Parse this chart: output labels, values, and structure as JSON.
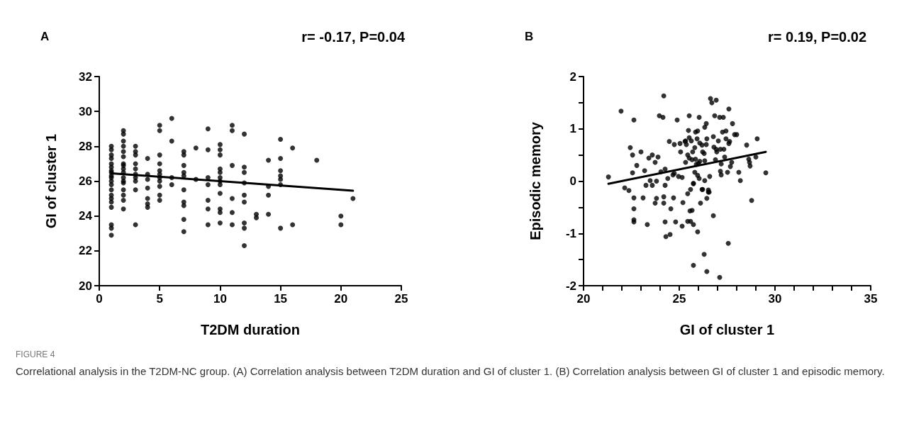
{
  "chart_data": [
    {
      "type": "scatter",
      "title": "A",
      "xlabel": "T2DM duration",
      "ylabel": "GI of cluster 1",
      "annotations": [
        "r= -0.17, P=0.04",
        "FIGURE 4",
        "Correlational analysis in the T2DM-NC group. (A) Correlation analysis between T2DM duration and GI of cluster 1. (B) Correlation analysis between GI of cluster 1 and episodic memory."
      ],
      "marker": "circle",
      "xlim": [
        0,
        25
      ],
      "xticks": [
        0,
        5,
        10,
        15,
        20,
        25
      ],
      "ylim": [
        20,
        32
      ],
      "yticks": [
        20,
        22,
        24,
        26,
        28,
        30,
        32
      ],
      "series": [
        {
          "color": "#000000",
          "x": [
            1,
            1,
            1,
            1,
            1,
            1,
            1,
            1,
            1,
            1,
            1,
            1,
            1,
            1,
            1,
            1,
            1,
            1,
            1,
            1,
            2,
            2,
            2,
            2,
            2,
            2,
            2,
            2,
            2,
            2,
            2,
            2,
            2,
            2,
            2,
            2,
            2,
            3,
            3,
            3,
            3,
            3,
            3,
            3,
            3,
            3,
            3,
            4,
            4,
            4,
            4,
            4,
            4,
            4,
            5,
            5,
            5,
            5,
            5,
            5,
            5,
            5,
            5,
            5,
            5,
            6,
            6,
            6,
            6,
            7,
            7,
            7,
            7,
            7,
            7,
            7,
            7,
            7,
            7,
            8,
            8,
            9,
            9,
            9,
            9,
            9,
            9,
            9,
            10,
            10,
            10,
            10,
            10,
            10,
            10,
            10,
            10,
            10,
            10,
            10,
            11,
            11,
            11,
            11,
            11,
            11,
            12,
            12,
            12,
            12,
            12,
            12,
            12,
            12,
            12,
            13,
            13,
            14,
            14,
            14,
            14,
            15,
            15,
            15,
            15,
            15,
            15,
            15,
            16,
            16,
            18,
            20,
            20,
            21
          ],
          "values": [
            28.0,
            27.8,
            27.5,
            27.3,
            27.0,
            26.8,
            26.5,
            26.3,
            26.0,
            25.8,
            25.5,
            25.2,
            25.0,
            24.8,
            24.5,
            23.5,
            23.3,
            22.9,
            26.6,
            26.2,
            28.9,
            28.7,
            28.3,
            28.0,
            27.7,
            27.4,
            27.0,
            26.9,
            26.7,
            26.5,
            26.2,
            25.9,
            25.5,
            25.2,
            24.9,
            24.4,
            26.0,
            28.0,
            27.7,
            27.5,
            27.0,
            26.7,
            26.4,
            26.2,
            26.0,
            25.5,
            23.5,
            27.3,
            26.4,
            26.1,
            25.6,
            25.0,
            24.7,
            24.5,
            29.2,
            28.9,
            27.5,
            27.0,
            26.6,
            26.4,
            26.2,
            26.0,
            25.7,
            25.2,
            24.9,
            29.6,
            28.3,
            26.2,
            25.8,
            27.7,
            27.5,
            26.9,
            26.5,
            26.3,
            25.5,
            24.8,
            24.6,
            23.8,
            23.1,
            27.9,
            26.1,
            29.0,
            27.8,
            26.2,
            25.8,
            24.9,
            24.4,
            23.5,
            28.1,
            27.8,
            27.5,
            26.7,
            26.5,
            26.2,
            26.0,
            25.8,
            25.3,
            24.4,
            24.2,
            23.6,
            29.2,
            28.9,
            26.9,
            25.0,
            24.2,
            23.5,
            28.7,
            26.8,
            26.5,
            25.9,
            25.2,
            24.8,
            23.6,
            23.3,
            22.3,
            24.1,
            23.9,
            27.2,
            25.7,
            25.2,
            24.1,
            28.4,
            27.3,
            26.6,
            26.3,
            26.1,
            25.8,
            23.3,
            27.9,
            23.5,
            27.2,
            24.0,
            23.5,
            25.0
          ]
        },
        {
          "type": "line",
          "marker": "none",
          "color": "#000000",
          "x": [
            1,
            21
          ],
          "values": [
            26.45,
            25.45
          ]
        }
      ]
    },
    {
      "type": "scatter",
      "title": "B",
      "xlabel": "GI of cluster 1",
      "ylabel": "Episodic memory",
      "annotations": [
        "r= 0.19, P=0.02"
      ],
      "marker": "circle",
      "xlim": [
        20,
        35
      ],
      "xticks": [
        20,
        {
          "value": 21,
          "label": null
        },
        {
          "value": 22,
          "label": null
        },
        {
          "value": 23,
          "label": null
        },
        {
          "value": 24,
          "label": null
        },
        25,
        {
          "value": 26,
          "label": null
        },
        {
          "value": 27,
          "label": null
        },
        {
          "value": 28,
          "label": null
        },
        {
          "value": 29,
          "label": null
        },
        30,
        {
          "value": 31,
          "label": null
        },
        {
          "value": 32,
          "label": null
        },
        {
          "value": 33,
          "label": null
        },
        {
          "value": 34,
          "label": null
        },
        35
      ],
      "ylim": [
        -2,
        2
      ],
      "yticks": [
        -2,
        {
          "value": -1.5,
          "label": null
        },
        -1,
        {
          "value": -0.5,
          "label": null
        },
        0,
        {
          "value": 0.5,
          "label": null
        },
        1,
        {
          "value": 1.5,
          "label": null
        },
        2
      ],
      "series": [
        {
          "color": "#000000",
          "x": [
            24.19,
            21.96,
            22.63,
            23.96,
            24.15,
            24.89,
            24.48,
            24.74,
            25.04,
            25.3,
            22.44,
            22.56,
            23.0,
            23.59,
            23.41,
            23.89,
            23.74,
            22.78,
            25.07,
            25.33,
            22.56,
            23.19,
            24.26,
            24.04,
            21.3,
            24.4,
            24.67,
            24.96,
            25.15,
            23.48,
            23.81,
            23.26,
            23.59,
            24.26,
            22.15,
            22.37,
            22.63,
            23.11,
            23.81,
            24.19,
            24.7,
            23.74,
            24.19,
            25.19,
            26.11,
            26.44,
            26.52,
            26.22,
            25.59,
            25.44,
            25.74,
            22.63,
            24.56,
            25.56,
            25.67,
            26.78,
            28.78,
            22.63,
            22.63,
            23.33,
            24.26,
            24.81,
            25.15,
            25.44,
            25.59,
            25.74,
            25.96,
            24.52,
            24.3,
            27.56,
            26.3,
            25.74,
            26.44,
            27.11,
            26.63,
            26.93,
            26.7,
            27.59,
            25.52,
            26.04,
            26.85,
            27.11,
            27.3,
            27.78,
            26.41,
            26.33,
            25.48,
            25.85,
            25.96,
            27.26,
            27.44,
            27.89,
            28.0,
            26.78,
            25.52,
            25.93,
            26.44,
            27.04,
            27.44,
            27.63,
            29.07,
            28.52,
            25.33,
            25.37,
            25.63,
            26.07,
            26.19,
            26.41,
            27.59,
            25.81,
            26.81,
            26.93,
            27.15,
            27.33,
            25.7,
            26.22,
            26.3,
            26.96,
            25.44,
            25.52,
            25.67,
            25.85,
            27.37,
            26.89,
            26.07,
            26.33,
            25.89,
            26.0,
            27.19,
            27.74,
            28.63,
            29.0,
            28.67,
            28.7,
            27.67,
            27.15,
            27.52,
            28.11,
            29.52,
            27.19,
            25.81,
            25.96,
            26.04,
            26.33,
            26.59,
            28.19,
            24.74,
            25.74,
            26.19,
            26.52,
            26.56
          ],
          "values": [
            1.63,
            1.34,
            1.17,
            1.25,
            1.22,
            1.17,
            0.76,
            0.7,
            0.72,
            0.76,
            0.64,
            0.5,
            0.56,
            0.5,
            0.44,
            0.46,
            0.36,
            0.3,
            0.56,
            0.36,
            0.16,
            0.2,
            0.23,
            0.18,
            0.08,
            0.05,
            0.12,
            0.09,
            0.07,
            0.01,
            0.0,
            -0.08,
            -0.08,
            -0.08,
            -0.13,
            -0.18,
            -0.32,
            -0.32,
            -0.33,
            -0.3,
            -0.32,
            -0.42,
            -0.42,
            -0.41,
            -0.42,
            -0.33,
            -0.21,
            -0.16,
            -0.16,
            -0.24,
            -0.05,
            -0.53,
            -0.53,
            -0.57,
            -0.56,
            -0.66,
            -0.37,
            -0.74,
            -0.78,
            -0.83,
            -0.78,
            -0.78,
            -0.86,
            -0.77,
            -0.77,
            -0.83,
            -0.97,
            -1.02,
            -1.06,
            -1.19,
            -1.4,
            -1.61,
            -1.73,
            -1.84,
            1.58,
            1.55,
            1.5,
            1.38,
            1.25,
            1.22,
            1.25,
            1.22,
            1.22,
            1.1,
            1.1,
            1.03,
            0.97,
            0.94,
            0.96,
            0.94,
            0.96,
            0.89,
            0.89,
            0.85,
            0.83,
            0.81,
            0.81,
            0.77,
            0.81,
            0.76,
            0.81,
            0.69,
            0.77,
            0.7,
            0.77,
            0.73,
            0.69,
            0.7,
            0.72,
            0.64,
            0.65,
            0.61,
            0.61,
            0.61,
            0.56,
            0.56,
            0.53,
            0.56,
            0.5,
            0.44,
            0.41,
            0.42,
            0.46,
            0.41,
            0.38,
            0.39,
            0.32,
            0.34,
            0.33,
            0.36,
            0.42,
            0.46,
            0.36,
            0.29,
            0.28,
            0.19,
            0.17,
            0.17,
            0.16,
            0.12,
            0.17,
            0.11,
            0.05,
            0.01,
            0.09,
            0.01,
            0.15,
            -0.04,
            -0.16,
            -0.17,
            -0.21
          ]
        },
        {
          "type": "line",
          "marker": "none",
          "color": "#000000",
          "x": [
            21.3,
            29.52
          ],
          "values": [
            -0.05,
            0.56
          ]
        }
      ]
    }
  ]
}
